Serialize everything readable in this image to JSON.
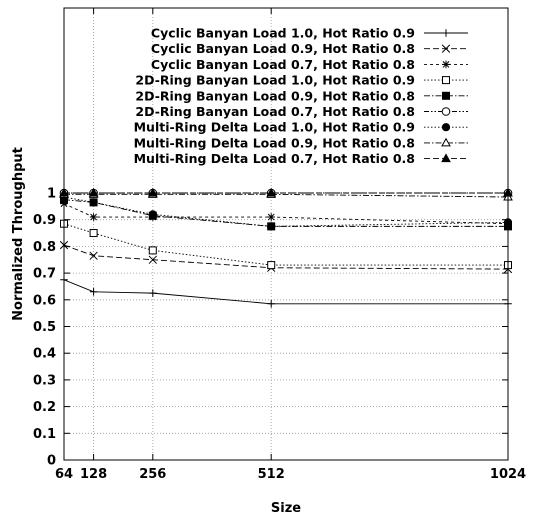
{
  "chart_data": {
    "type": "line",
    "xlabel": "Size",
    "ylabel": "Normalized Throughput",
    "x": [
      64,
      128,
      256,
      512,
      1024
    ],
    "x_tick_labels": [
      "64",
      "128",
      "256",
      "512",
      "1024"
    ],
    "xlim": [
      64,
      1024
    ],
    "ylim": [
      0,
      1.0
    ],
    "y_ticks": [
      0,
      0.1,
      0.2,
      0.3,
      0.4,
      0.5,
      0.6,
      0.7,
      0.8,
      0.9,
      1
    ],
    "y_tick_labels": [
      "0",
      "0.1",
      "0.2",
      "0.3",
      "0.4",
      "0.5",
      "0.6",
      "0.7",
      "0.8",
      "0.9",
      "1"
    ],
    "grid": true,
    "legend_position": "top-right",
    "series": [
      {
        "name": "Cyclic Banyan Load 1.0, Hot Ratio 0.9",
        "marker": "plus",
        "dash": "solid",
        "values": [
          0.675,
          0.63,
          0.625,
          0.585,
          0.585
        ]
      },
      {
        "name": "Cyclic Banyan Load 0.9, Hot Ratio 0.8",
        "marker": "cross",
        "dash": "dashed",
        "values": [
          0.805,
          0.765,
          0.75,
          0.72,
          0.715
        ]
      },
      {
        "name": "Cyclic Banyan Load 0.7, Hot Ratio 0.8",
        "marker": "star",
        "dash": "shortdash",
        "values": [
          0.96,
          0.91,
          0.91,
          0.91,
          0.885
        ]
      },
      {
        "name": "2D-Ring Banyan Load 1.0, Hot Ratio 0.9",
        "marker": "square-open",
        "dash": "dotted",
        "values": [
          0.885,
          0.85,
          0.785,
          0.73,
          0.73
        ]
      },
      {
        "name": "2D-Ring Banyan Load 0.9, Hot Ratio 0.8",
        "marker": "square-filled",
        "dash": "dashdot",
        "values": [
          0.975,
          0.965,
          0.915,
          0.875,
          0.875
        ]
      },
      {
        "name": "2D-Ring Banyan Load 0.7, Hot Ratio 0.8",
        "marker": "circle-open",
        "dash": "dashdotdot",
        "values": [
          1.0,
          1.0,
          1.0,
          1.0,
          1.0
        ]
      },
      {
        "name": "Multi-Ring Delta Load 1.0, Hot Ratio 0.9",
        "marker": "circle-filled",
        "dash": "dotted",
        "values": [
          0.985,
          0.965,
          0.92,
          0.875,
          0.89
        ]
      },
      {
        "name": "Multi-Ring Delta Load 0.9, Hot Ratio 0.8",
        "marker": "triangle-open",
        "dash": "dashdot",
        "values": [
          0.995,
          0.995,
          0.995,
          0.995,
          0.985
        ]
      },
      {
        "name": "Multi-Ring Delta Load 0.7, Hot Ratio 0.8",
        "marker": "triangle-filled",
        "dash": "dashed",
        "values": [
          1.0,
          1.0,
          1.0,
          1.0,
          1.0
        ]
      }
    ]
  }
}
